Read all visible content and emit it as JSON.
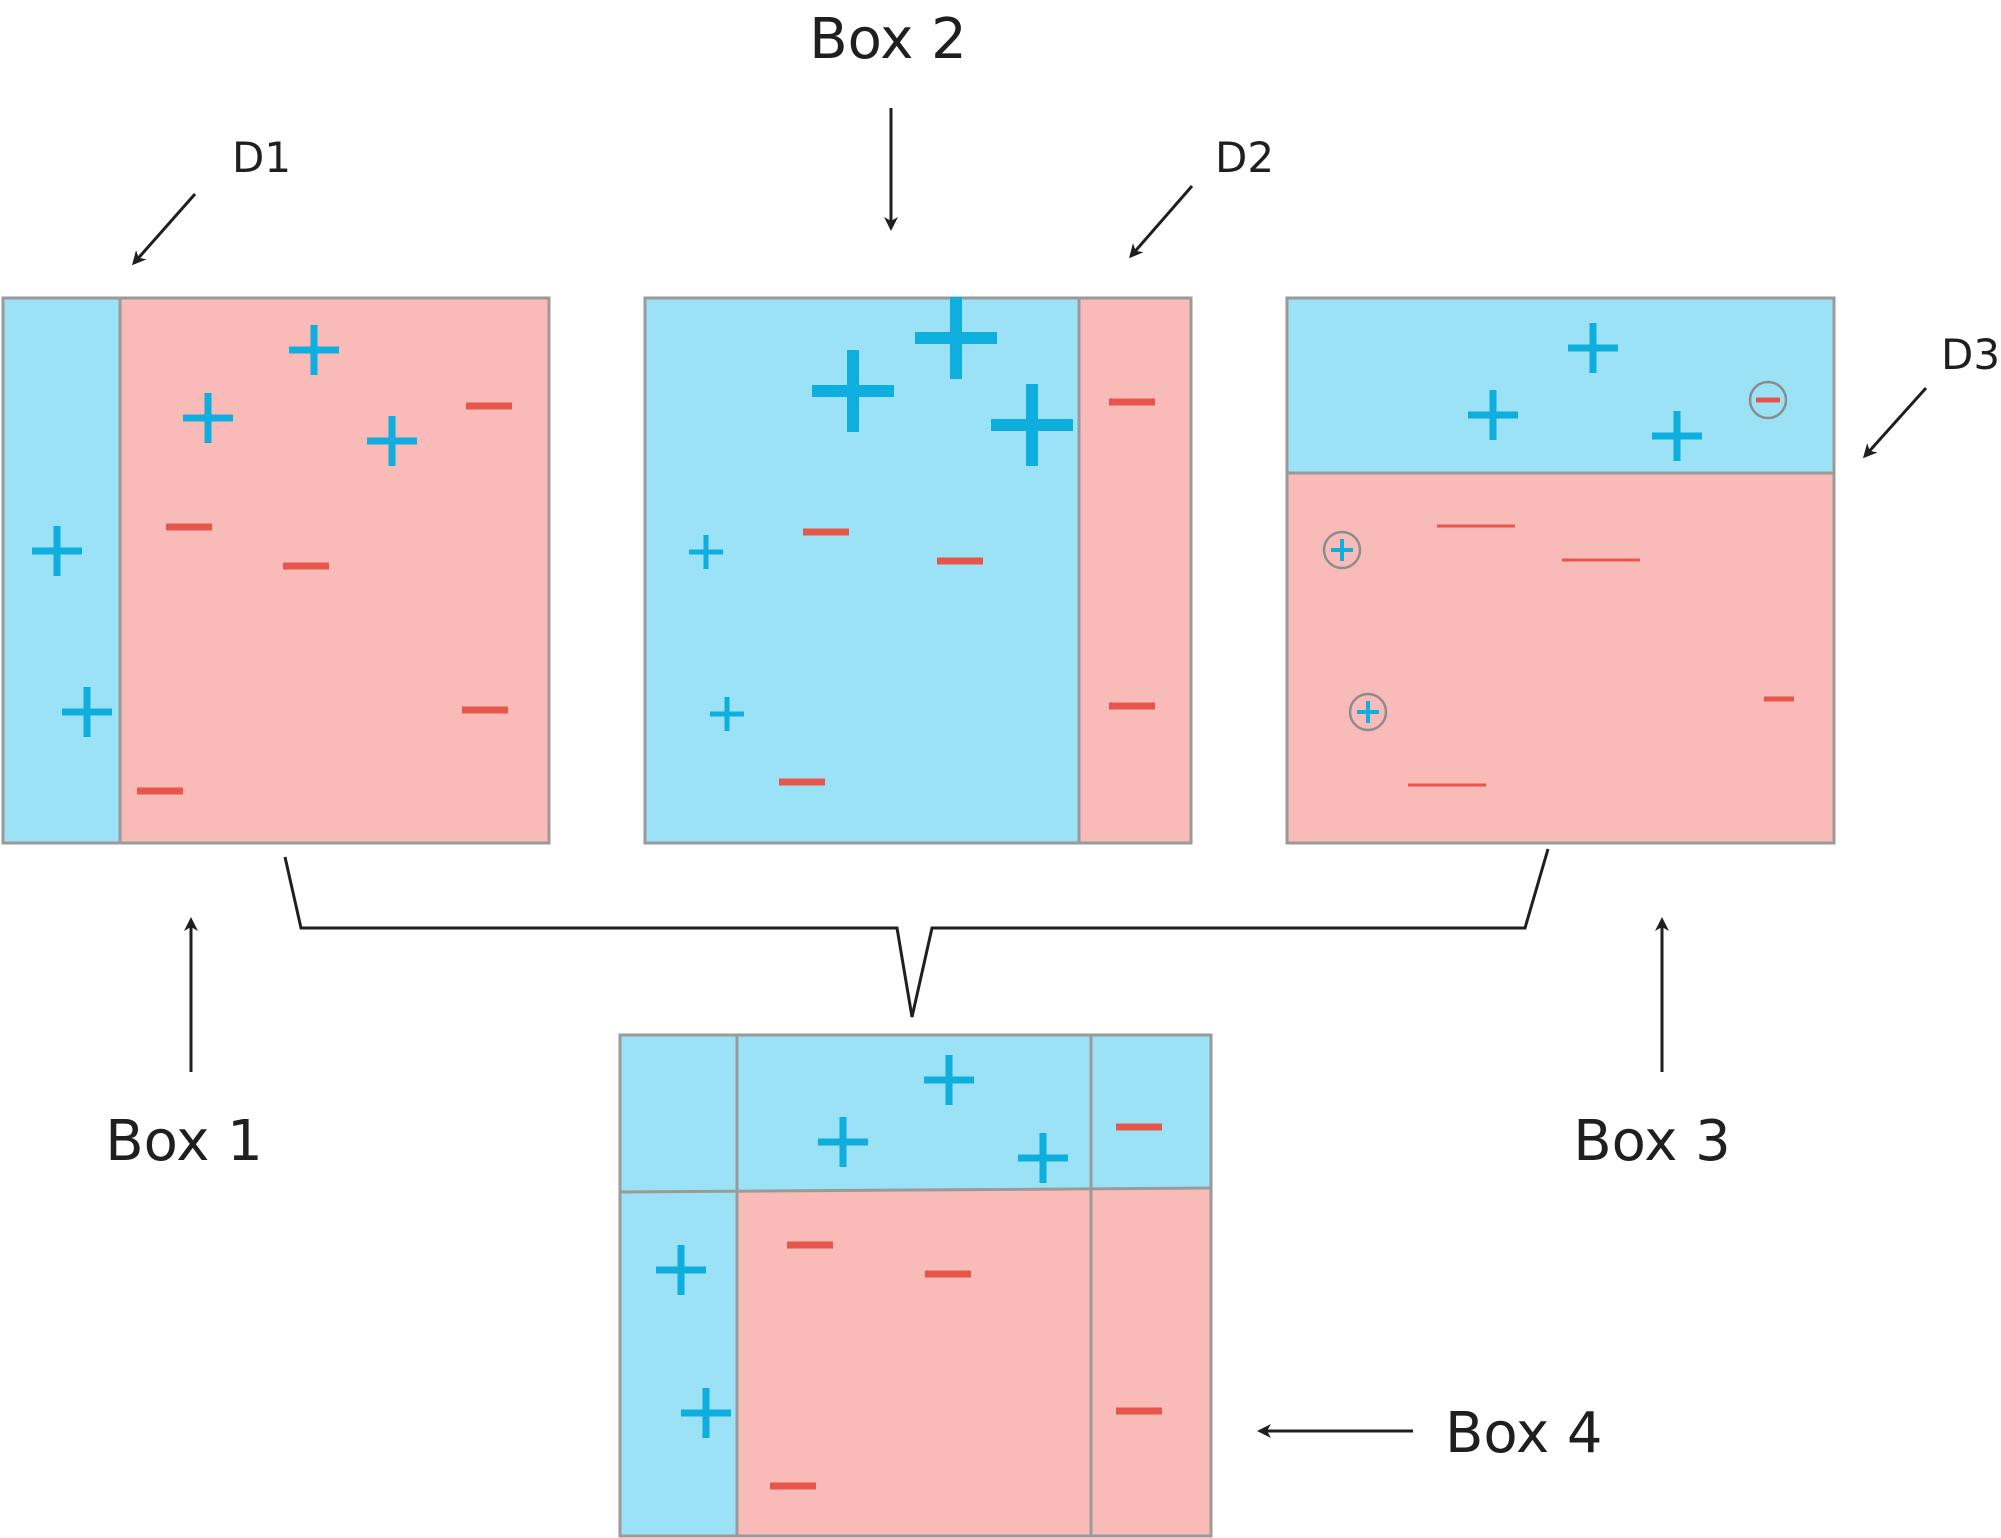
{
  "labels": {
    "box1": "Box 1",
    "box2": "Box 2",
    "box3": "Box 3",
    "box4": "Box 4",
    "d1": "D1",
    "d2": "D2",
    "d3": "D3"
  },
  "symbols": {
    "plus": "+",
    "minus": "−"
  },
  "colors": {
    "positive_region": "#9ce2f6",
    "negative_region": "#f9bbb8",
    "plus_sign": "#0eaede",
    "minus_sign": "#e8564b",
    "border": "#9a9a9a",
    "line": "#1f1f1f",
    "circle": "#8c8c8c"
  }
}
